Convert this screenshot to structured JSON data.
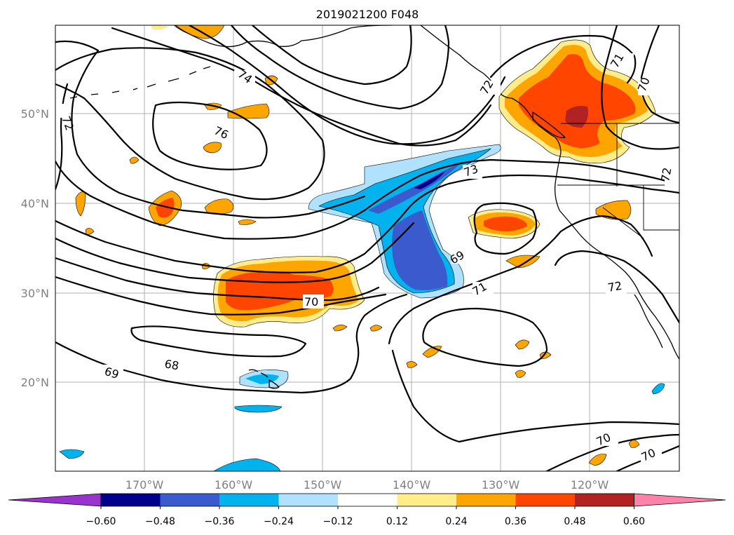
{
  "title": "2019021200 F048",
  "map": {
    "region": "North Pacific / western North America",
    "lat_labels": [
      "50°N",
      "40°N",
      "30°N",
      "20°N"
    ],
    "lon_labels": [
      "170°W",
      "160°W",
      "150°W",
      "140°W",
      "130°W",
      "120°W"
    ],
    "gridlines": true
  },
  "contour_labels": [
    "72",
    "74",
    "76",
    "73",
    "72",
    "71",
    "70",
    "69",
    "71",
    "72",
    "70",
    "68",
    "69",
    "70",
    "70",
    "72",
    "70",
    "71"
  ],
  "colorbar": {
    "ticks": [
      "−0.60",
      "−0.48",
      "−0.36",
      "−0.24",
      "−0.12",
      "0.12",
      "0.24",
      "0.36",
      "0.48",
      "0.60"
    ],
    "colors": [
      "#9a32cd",
      "#00008b",
      "#3a5acd",
      "#00b2ee",
      "#b0e2ff",
      "#ffffff",
      "#ffec8b",
      "#ffa500",
      "#ff4500",
      "#b22222",
      "#ff82ab"
    ],
    "extend": "both"
  },
  "shading_colors": {
    "neg_light": "#b0e2ff",
    "neg_mid": "#00b2ee",
    "neg_strong": "#3a5acd",
    "neg_deep": "#00008b",
    "pos_light": "#ffec8b",
    "pos_mid": "#ffa500",
    "pos_strong": "#ff4500",
    "pos_deep": "#b22222"
  }
}
